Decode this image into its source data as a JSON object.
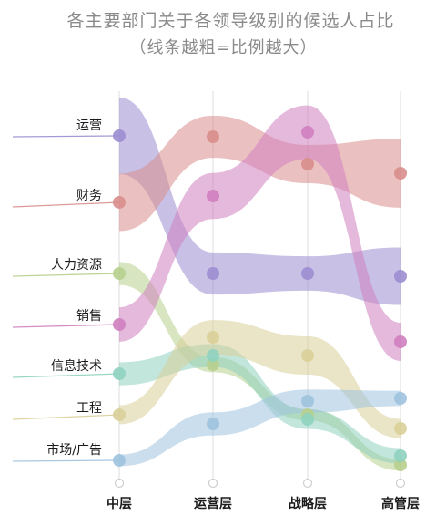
{
  "chart_data": {
    "type": "parallel-sets",
    "title": "各主要部门关于各领导级别的候选人占比",
    "subtitle": "（线条越粗=比例越大）",
    "levels": [
      "中层",
      "运营层",
      "战略层",
      "高管层"
    ],
    "series": [
      {
        "name": "运营",
        "color": "#9b8dd0",
        "values": [
          1.0,
          0.55,
          0.45,
          0.75
        ]
      },
      {
        "name": "财务",
        "color": "#d98e8c",
        "values": [
          0.75,
          0.55,
          0.5,
          0.9
        ]
      },
      {
        "name": "人力资源",
        "color": "#b7cf8e",
        "values": [
          0.3,
          0.2,
          0.15,
          0.15
        ]
      },
      {
        "name": "销售",
        "color": "#cf7fbf",
        "values": [
          0.45,
          0.6,
          0.7,
          0.5
        ]
      },
      {
        "name": "信息技术",
        "color": "#8fd2c0",
        "values": [
          0.3,
          0.3,
          0.25,
          0.2
        ]
      },
      {
        "name": "工程",
        "color": "#d9cf99",
        "values": [
          0.25,
          0.45,
          0.5,
          0.25
        ]
      },
      {
        "name": "市场/广告",
        "color": "#9fc3de",
        "values": [
          0.15,
          0.3,
          0.3,
          0.2
        ]
      }
    ]
  }
}
